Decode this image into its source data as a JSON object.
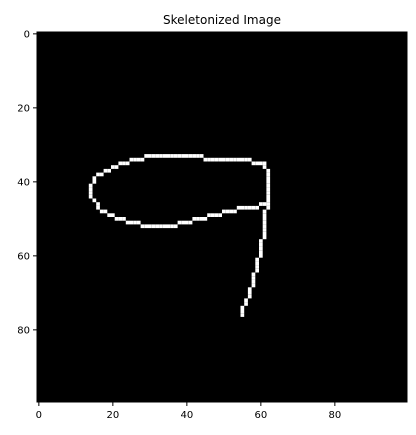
{
  "chart_data": {
    "type": "heatmap",
    "title": "Skeletonized Image",
    "xlabel": "",
    "ylabel": "",
    "image_shape": [
      100,
      100
    ],
    "background_color": "#000000",
    "foreground_color": "#ffffff",
    "colormap": "gray",
    "xlim": [
      -0.5,
      99.5
    ],
    "ylim": [
      99.5,
      -0.5
    ],
    "x_ticks": [
      0,
      20,
      40,
      60,
      80
    ],
    "y_ticks": [
      0,
      20,
      40,
      60,
      80
    ],
    "x_tick_labels": [
      "0",
      "20",
      "40",
      "60",
      "80"
    ],
    "y_tick_labels": [
      "0",
      "20",
      "40",
      "60",
      "80"
    ],
    "grid": false,
    "strokes": [
      {
        "name": "loop",
        "closed": true,
        "points": [
          [
            30,
            33
          ],
          [
            44,
            33
          ],
          [
            45,
            34
          ],
          [
            53,
            34
          ],
          [
            61,
            35
          ],
          [
            62,
            37
          ],
          [
            62,
            46
          ],
          [
            58,
            47
          ],
          [
            56,
            47
          ],
          [
            52,
            48
          ],
          [
            48,
            49
          ],
          [
            44,
            50
          ],
          [
            40,
            51
          ],
          [
            36,
            52
          ],
          [
            30,
            52
          ],
          [
            26,
            51
          ],
          [
            21,
            50
          ],
          [
            18,
            48
          ],
          [
            16,
            47
          ],
          [
            15,
            45
          ],
          [
            14,
            44
          ],
          [
            14,
            42
          ],
          [
            15,
            40
          ],
          [
            16,
            38
          ],
          [
            18,
            37
          ],
          [
            20,
            36
          ],
          [
            23,
            35
          ],
          [
            26,
            34
          ]
        ]
      },
      {
        "name": "tail",
        "closed": false,
        "points": [
          [
            62,
            46
          ],
          [
            61,
            49
          ],
          [
            61,
            53
          ],
          [
            60,
            58
          ],
          [
            59,
            62
          ],
          [
            58,
            66
          ],
          [
            57,
            70
          ],
          [
            56,
            72
          ],
          [
            55,
            74
          ],
          [
            55,
            76
          ]
        ]
      }
    ]
  }
}
